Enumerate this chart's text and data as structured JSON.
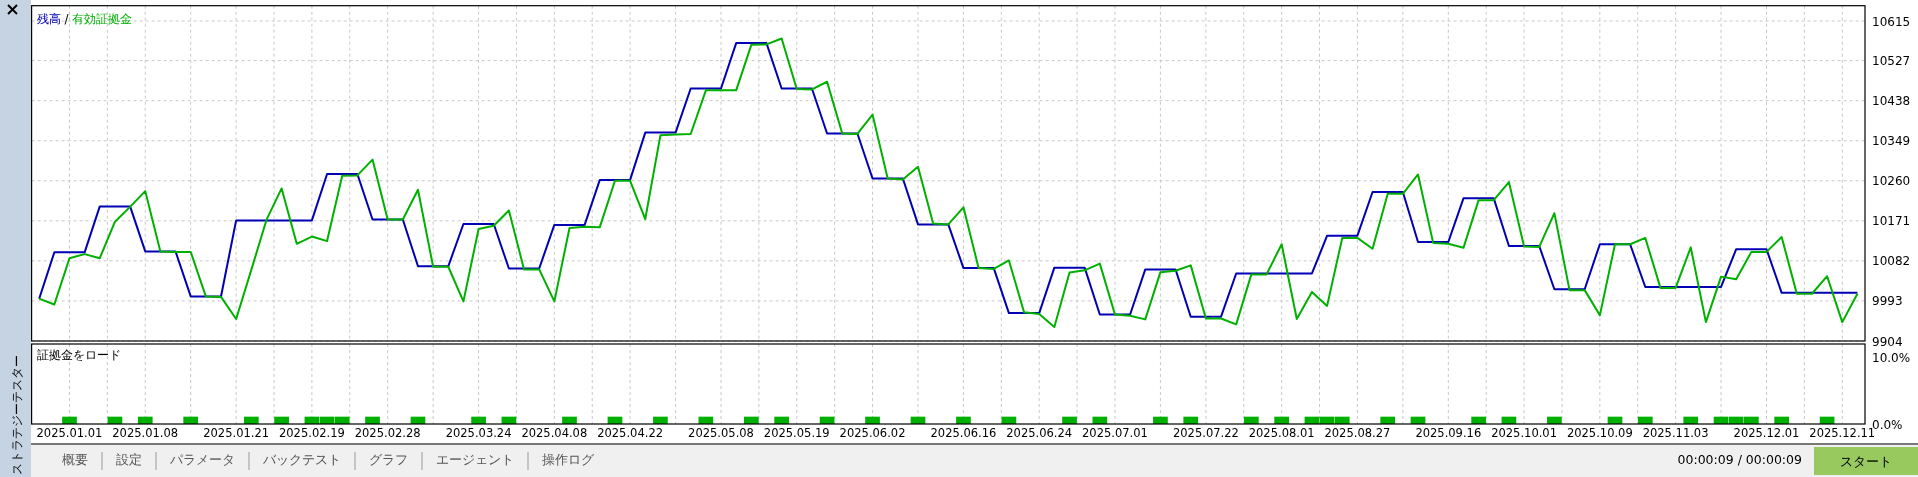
{
  "chart_data": [
    {
      "type": "line",
      "categories": [
        null,
        null,
        "2025.01.01",
        null,
        null,
        null,
        null,
        "2025.01.08",
        null,
        null,
        null,
        null,
        null,
        "2025.01.21",
        null,
        null,
        null,
        null,
        "2025.02.19",
        null,
        null,
        null,
        null,
        "2025.02.28",
        null,
        null,
        null,
        null,
        null,
        "2025.03.24",
        null,
        null,
        null,
        null,
        "2025.04.08",
        null,
        null,
        null,
        null,
        "2025.04.22",
        null,
        null,
        null,
        null,
        null,
        "2025.05.08",
        null,
        null,
        null,
        null,
        "2025.05.19",
        null,
        null,
        null,
        null,
        "2025.06.02",
        null,
        null,
        null,
        null,
        null,
        "2025.06.16",
        null,
        null,
        null,
        null,
        "2025.06.24",
        null,
        null,
        null,
        null,
        "2025.07.01",
        null,
        null,
        null,
        null,
        null,
        "2025.07.22",
        null,
        null,
        null,
        null,
        "2025.08.01",
        null,
        null,
        null,
        null,
        "2025.08.27",
        null,
        null,
        null,
        null,
        null,
        "2025.09.16",
        null,
        null,
        null,
        null,
        "2025.10.01",
        null,
        null,
        null,
        null,
        "2025.10.09",
        null,
        null,
        null,
        null,
        "2025.11.03",
        null,
        null,
        null,
        null,
        null,
        "2025.12.01",
        null,
        null,
        null,
        null,
        "2025.12.11",
        null
      ],
      "series": [
        {
          "name": "残高",
          "color": "#0000b4",
          "values": [
            9998,
            10101,
            10101,
            10101,
            10203,
            10203,
            10203,
            10103,
            10103,
            10103,
            10003,
            10003,
            10003,
            10172,
            10172,
            10172,
            10172,
            10172,
            10172,
            10275,
            10275,
            10275,
            10174,
            10174,
            10174,
            10070,
            10070,
            10070,
            10164,
            10164,
            10164,
            10065,
            10065,
            10065,
            10162,
            10162,
            10162,
            10262,
            10262,
            10262,
            10367,
            10367,
            10367,
            10465,
            10465,
            10465,
            10566,
            10566,
            10566,
            10465,
            10465,
            10465,
            10365,
            10365,
            10365,
            10265,
            10265,
            10265,
            10163,
            10163,
            10163,
            10066,
            10066,
            10066,
            9966,
            9966,
            9966,
            10067,
            10067,
            10067,
            9963,
            9963,
            9963,
            10063,
            10063,
            10063,
            9958,
            9958,
            9958,
            10054,
            10054,
            10054,
            10054,
            10054,
            10054,
            10138,
            10138,
            10138,
            10235,
            10235,
            10235,
            10124,
            10124,
            10124,
            10221,
            10221,
            10221,
            10115,
            10115,
            10115,
            10019,
            10019,
            10019,
            10119,
            10119,
            10119,
            10024,
            10024,
            10024,
            10024,
            10024,
            10024,
            10108,
            10108,
            10108,
            10011,
            10011,
            10011,
            10011,
            10011,
            10011
          ]
        },
        {
          "name": "有効証拠金",
          "color": "#00b000",
          "values": [
            9998,
            9985,
            10088,
            10097,
            10088,
            10169,
            10202,
            10237,
            10103,
            10102,
            10102,
            10003,
            10002,
            9953,
            10062,
            10173,
            10243,
            10120,
            10136,
            10126,
            10271,
            10272,
            10307,
            10174,
            10174,
            10240,
            10069,
            10069,
            9992,
            10153,
            10160,
            10194,
            10063,
            10063,
            9992,
            10155,
            10158,
            10157,
            10260,
            10260,
            10175,
            10361,
            10363,
            10364,
            10461,
            10461,
            10461,
            10562,
            10563,
            10576,
            10464,
            10463,
            10480,
            10365,
            10364,
            10407,
            10265,
            10263,
            10291,
            10165,
            10163,
            10201,
            10066,
            10064,
            10083,
            9968,
            9964,
            9935,
            10056,
            10061,
            10076,
            9963,
            9960,
            9952,
            10057,
            10060,
            10072,
            9954,
            9954,
            9941,
            10052,
            10052,
            10119,
            9953,
            10013,
            9982,
            10133,
            10133,
            10109,
            10231,
            10231,
            10274,
            10122,
            10120,
            10111,
            10217,
            10217,
            10257,
            10114,
            10113,
            10188,
            10017,
            10017,
            9961,
            10119,
            10119,
            10133,
            10022,
            10022,
            10112,
            9946,
            10047,
            10041,
            10102,
            10102,
            10135,
            10009,
            10009,
            10048,
            9946,
            10009
          ]
        }
      ],
      "ylim": [
        9904,
        10649
      ],
      "yticks": [
        9904,
        9993,
        10082,
        10171,
        10260,
        10349,
        10438,
        10527,
        10615
      ],
      "tick_labels": "y",
      "grid": true,
      "legend": "top left",
      "annotations": [
        "/"
      ]
    },
    {
      "type": "bar",
      "title": "証拠金をロード",
      "color": "#00b000",
      "categories": [
        null,
        null,
        "2025.01.01",
        null,
        null,
        null,
        null,
        "2025.01.08",
        null,
        null,
        null,
        null,
        null,
        "2025.01.21",
        null,
        null,
        null,
        null,
        "2025.02.19",
        null,
        null,
        null,
        null,
        "2025.02.28",
        null,
        null,
        null,
        null,
        null,
        "2025.03.24",
        null,
        null,
        null,
        null,
        "2025.04.08",
        null,
        null,
        null,
        null,
        "2025.04.22",
        null,
        null,
        null,
        null,
        null,
        "2025.05.08",
        null,
        null,
        null,
        null,
        "2025.05.19",
        null,
        null,
        null,
        null,
        "2025.06.02",
        null,
        null,
        null,
        null,
        null,
        "2025.06.16",
        null,
        null,
        null,
        null,
        "2025.06.24",
        null,
        null,
        null,
        null,
        "2025.07.01",
        null,
        null,
        null,
        null,
        null,
        "2025.07.22",
        null,
        null,
        null,
        null,
        "2025.08.01",
        null,
        null,
        null,
        null,
        "2025.08.27",
        null,
        null,
        null,
        null,
        null,
        "2025.09.16",
        null,
        null,
        null,
        null,
        "2025.10.01",
        null,
        null,
        null,
        null,
        "2025.10.09",
        null,
        null,
        null,
        null,
        "2025.11.03",
        null,
        null,
        null,
        null,
        null,
        "2025.12.01",
        null,
        null,
        null,
        null,
        "2025.12.11",
        null
      ],
      "values": [
        null,
        null,
        1.1,
        null,
        null,
        1.1,
        null,
        1.1,
        null,
        null,
        1.1,
        null,
        null,
        null,
        1.1,
        null,
        1.1,
        null,
        1.1,
        1.1,
        1.1,
        null,
        1.1,
        null,
        null,
        1.1,
        null,
        null,
        null,
        1.1,
        null,
        1.1,
        null,
        null,
        null,
        1.1,
        null,
        null,
        1.1,
        null,
        null,
        1.1,
        null,
        null,
        1.1,
        null,
        null,
        1.1,
        null,
        1.1,
        null,
        null,
        1.1,
        null,
        null,
        1.1,
        null,
        null,
        1.1,
        null,
        null,
        1.1,
        null,
        null,
        1.1,
        null,
        null,
        null,
        1.1,
        null,
        1.1,
        null,
        null,
        null,
        1.1,
        null,
        1.1,
        null,
        null,
        null,
        1.1,
        null,
        1.1,
        null,
        1.1,
        1.1,
        1.1,
        null,
        null,
        1.1,
        null,
        1.1,
        null,
        null,
        null,
        1.1,
        null,
        1.1,
        null,
        null,
        1.1,
        null,
        null,
        null,
        1.1,
        null,
        1.1,
        null,
        null,
        1.1,
        null,
        1.1,
        1.1,
        1.1,
        null,
        1.1,
        null,
        null,
        1.1,
        null,
        null
      ],
      "ylim": [
        0,
        12
      ],
      "yticks": [
        {
          "value": 0,
          "label": "0.0%"
        },
        {
          "value": 10,
          "label": "10.0%"
        }
      ],
      "grid": "x"
    },
    {
      "type": "other",
      "annotations": [
        "ストラテジーテスター",
        "概要",
        "設定",
        "パラメータ",
        "バックテスト",
        "グラフ",
        "エージェント",
        "操作ログ",
        "00:00:09 / 00:00:09",
        "スタート"
      ]
    }
  ]
}
